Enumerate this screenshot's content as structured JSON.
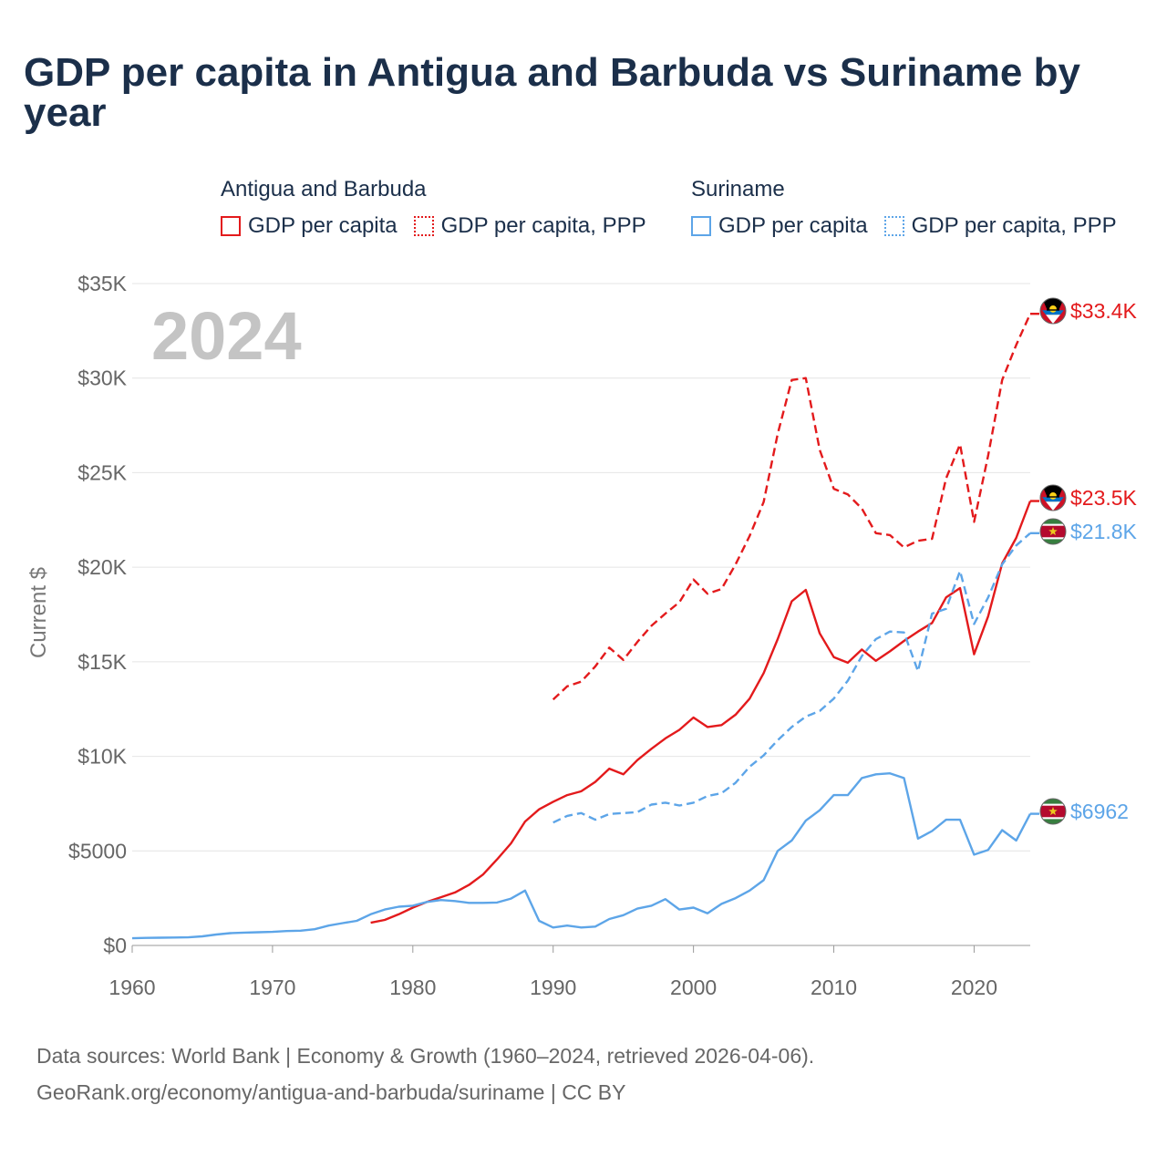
{
  "title_line1": "GDP per capita in Antigua and Barbuda vs Suriname by",
  "title_line2": "year",
  "legend": {
    "groups": [
      {
        "name": "Antigua and Barbuda",
        "color": "#e31a1c",
        "items": [
          {
            "label": "GDP per capita",
            "style": "solid"
          },
          {
            "label": "GDP per capita, PPP",
            "style": "dotted"
          }
        ]
      },
      {
        "name": "Suriname",
        "color": "#5da5e8",
        "items": [
          {
            "label": "GDP per capita",
            "style": "solid"
          },
          {
            "label": "GDP per capita, PPP",
            "style": "dotted"
          }
        ]
      }
    ]
  },
  "footer": {
    "line1": "Data sources: World Bank | Economy & Growth (1960–2024, retrieved 2026-04-06).",
    "line2": "GeoRank.org/economy/antigua-and-barbuda/suriname | CC BY"
  },
  "chart_data": {
    "type": "line",
    "year_watermark": "2024",
    "ylabel": "Current $",
    "xlabel": "",
    "xlim": [
      1960,
      2024
    ],
    "ylim": [
      0,
      35000
    ],
    "x_ticks": [
      1960,
      1970,
      1980,
      1990,
      2000,
      2010,
      2020
    ],
    "x_tick_labels": [
      "1960",
      "1970",
      "1980",
      "1990",
      "2000",
      "2010",
      "2020"
    ],
    "y_ticks": [
      0,
      5000,
      10000,
      15000,
      20000,
      25000,
      30000,
      35000
    ],
    "y_tick_labels": [
      "$0",
      "$5000",
      "$10K",
      "$15K",
      "$20K",
      "$25K",
      "$30K",
      "$35K"
    ],
    "grid": true,
    "series": [
      {
        "name": "Antigua and Barbuda GDP per capita, PPP",
        "color": "#e31a1c",
        "dash": "dashed",
        "end_label": "$33.4K",
        "flag": "antigua",
        "start_year": 1990,
        "values": [
          13000,
          13700,
          13950,
          14750,
          15750,
          15100,
          16050,
          16900,
          17550,
          18150,
          19350,
          18600,
          18850,
          20150,
          21650,
          23450,
          27050,
          29900,
          30000,
          26200,
          24150,
          23850,
          23100,
          21800,
          21700,
          21050,
          21400,
          21500,
          24700,
          26500,
          22400,
          25900,
          29900,
          31750,
          33400
        ]
      },
      {
        "name": "Antigua and Barbuda GDP per capita",
        "color": "#e31a1c",
        "dash": "solid",
        "end_label": "$23.5K",
        "flag": "antigua",
        "start_year": 1977,
        "values": [
          1200,
          1350,
          1650,
          2000,
          2300,
          2550,
          2800,
          3200,
          3750,
          4550,
          5400,
          6550,
          7200,
          7600,
          7950,
          8150,
          8650,
          9350,
          9050,
          9800,
          10400,
          10950,
          11400,
          12050,
          11550,
          11650,
          12200,
          13050,
          14400,
          16200,
          18200,
          18800,
          16500,
          15250,
          14950,
          15650,
          15050,
          15550,
          16100,
          16600,
          17050,
          18400,
          18900,
          15400,
          17400,
          20200,
          21550,
          23500
        ]
      },
      {
        "name": "Suriname GDP per capita, PPP",
        "color": "#5da5e8",
        "dash": "dashed",
        "end_label": "$21.8K",
        "flag": "suriname",
        "start_year": 1990,
        "values": [
          6500,
          6850,
          7000,
          6650,
          6950,
          7000,
          7050,
          7450,
          7550,
          7400,
          7550,
          7900,
          8050,
          8600,
          9450,
          10050,
          10850,
          11550,
          12100,
          12400,
          13050,
          14000,
          15300,
          16200,
          16600,
          16550,
          14500,
          17550,
          17800,
          19800,
          17000,
          18400,
          20150,
          21150,
          21800
        ]
      },
      {
        "name": "Suriname GDP per capita",
        "color": "#5da5e8",
        "dash": "solid",
        "end_label": "$6962",
        "flag": "suriname",
        "start_year": 1960,
        "values": [
          380,
          400,
          410,
          420,
          430,
          480,
          580,
          650,
          680,
          700,
          720,
          760,
          780,
          860,
          1050,
          1180,
          1300,
          1650,
          1900,
          2050,
          2100,
          2300,
          2400,
          2350,
          2250,
          2250,
          2270,
          2480,
          2900,
          1300,
          950,
          1050,
          950,
          1000,
          1400,
          1600,
          1950,
          2100,
          2450,
          1900,
          2000,
          1700,
          2200,
          2500,
          2900,
          3450,
          5000,
          5550,
          6600,
          7150,
          7950,
          7950,
          8850,
          9050,
          9100,
          8850,
          5650,
          6050,
          6650,
          6650,
          4800,
          5050,
          6100,
          5550,
          6962
        ]
      }
    ]
  }
}
